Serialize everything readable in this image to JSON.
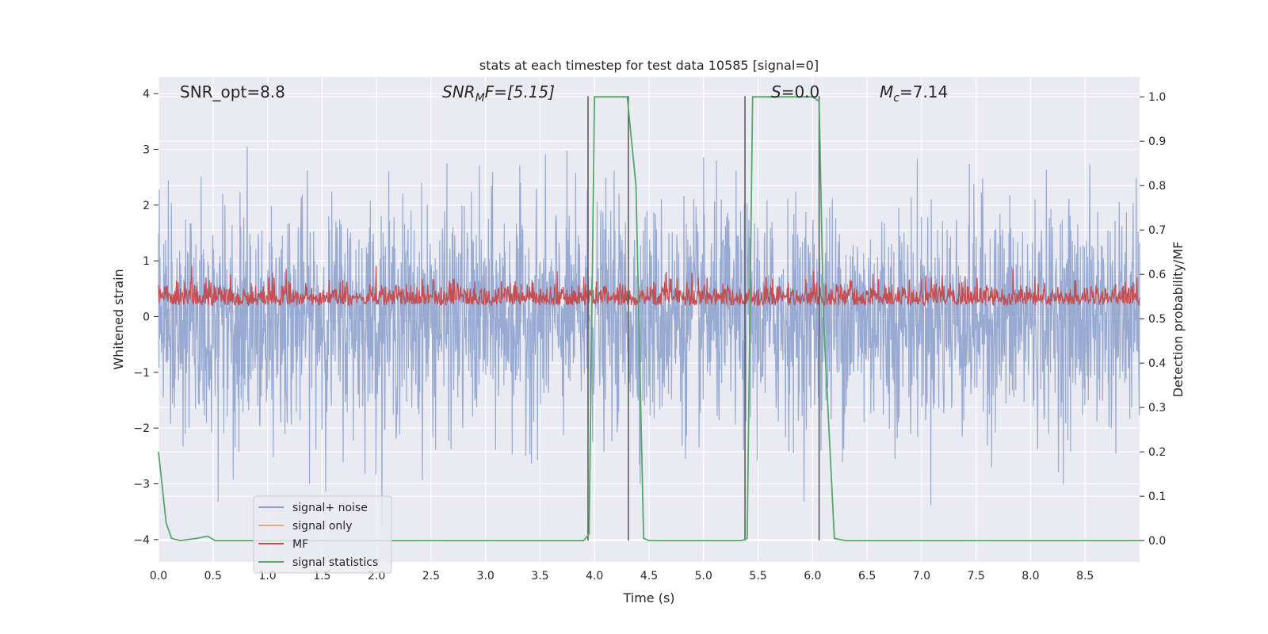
{
  "chart_data": {
    "type": "line",
    "title": "stats at each timestep for test data 10585 [signal=0]",
    "xlabel": "Time (s)",
    "ylabel": "Whitened strain",
    "ylabel_right": "Detection probability/MF",
    "xlim": [
      0,
      9.0
    ],
    "ylim": [
      -4.4,
      4.3
    ],
    "ylim_right": [
      -0.048,
      1.045
    ],
    "x_ticks": [
      "0.0",
      "0.5",
      "1.0",
      "1.5",
      "2.0",
      "2.5",
      "3.0",
      "3.5",
      "4.0",
      "4.5",
      "5.0",
      "5.5",
      "6.0",
      "6.5",
      "7.0",
      "7.5",
      "8.0",
      "8.5"
    ],
    "y_ticks": [
      "4",
      "3",
      "2",
      "1",
      "0",
      "−1",
      "−2",
      "−3",
      "−4"
    ],
    "y_right_ticks": [
      "1.0",
      "0.9",
      "0.8",
      "0.7",
      "0.6",
      "0.5",
      "0.4",
      "0.3",
      "0.2",
      "0.1",
      "0.0"
    ],
    "grid": true,
    "legend_position": "lower-left",
    "annotations": {
      "snr_opt": "SNR_opt=8.8",
      "snr_mf_main": "SNR",
      "snr_mf_sub": "M",
      "snr_mf_rest": "F=[5.15]",
      "s_main": "S",
      "s_rest": "=0.0",
      "mc_main": "M",
      "mc_sub": "c",
      "mc_rest": "=7.14"
    },
    "series": [
      {
        "name": "signal+ noise",
        "color": "#8a9fcb",
        "noise_amplitude": 1.0,
        "envelope": [
          -4.0,
          3.6
        ]
      },
      {
        "name": "signal only",
        "color": "#e9a88d",
        "values": []
      },
      {
        "name": "MF",
        "color": "#c44e52",
        "baseline": 0.53,
        "range": [
          0.5,
          0.6
        ]
      },
      {
        "name": "signal statistics",
        "color": "#55a868",
        "x": [
          0.0,
          0.07,
          0.12,
          0.2,
          0.35,
          0.45,
          0.52,
          3.9,
          3.95,
          4.0,
          4.3,
          4.38,
          4.45,
          4.5,
          5.35,
          5.4,
          5.45,
          5.5,
          6.0,
          6.06,
          6.1,
          6.2,
          6.3,
          9.0
        ],
        "values": [
          0.2,
          0.04,
          0.005,
          0.0,
          0.005,
          0.01,
          0.0,
          0.0,
          0.015,
          1.0,
          1.0,
          0.8,
          0.005,
          0.0,
          0.0,
          0.005,
          1.0,
          1.0,
          1.0,
          0.99,
          0.5,
          0.005,
          0.0,
          0.0
        ]
      }
    ],
    "vertical_lines_x": [
      3.94,
      4.31,
      5.38,
      6.06
    ],
    "vertical_lines_color": "#555555"
  }
}
